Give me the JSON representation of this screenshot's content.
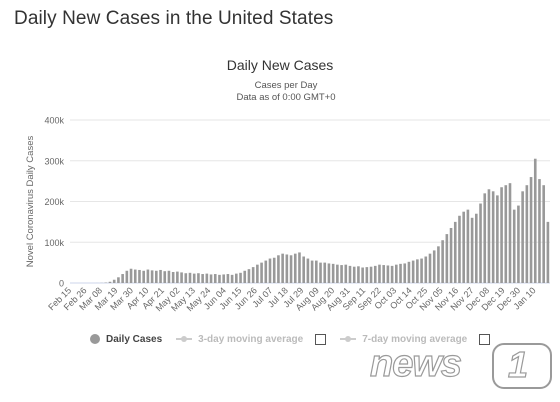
{
  "page": {
    "title": "Daily New Cases in the United States"
  },
  "chart_data": {
    "type": "bar",
    "title": "Daily New Cases",
    "subtitle_lines": [
      "Cases per Day",
      "Data as of 0:00 GMT+0"
    ],
    "ylabel": "Novel Coronavirus Daily Cases",
    "xlabel": "",
    "ylim": [
      0,
      400000
    ],
    "y_ticks": [
      {
        "value": 0,
        "label": "0"
      },
      {
        "value": 100000,
        "label": "100k"
      },
      {
        "value": 200000,
        "label": "200k"
      },
      {
        "value": 300000,
        "label": "300k"
      },
      {
        "value": 400000,
        "label": "400k"
      }
    ],
    "x_tick_labels": [
      "Feb 15",
      "Feb 26",
      "Mar 08",
      "Mar 19",
      "Mar 30",
      "Apr 10",
      "Apr 21",
      "May 02",
      "May 13",
      "May 24",
      "Jun 04",
      "Jun 15",
      "Jun 26",
      "Jul 07",
      "Jul 18",
      "Jul 29",
      "Aug 09",
      "Aug 20",
      "Aug 31",
      "Sep 11",
      "Sep 22",
      "Oct 03",
      "Oct 14",
      "Oct 25",
      "Nov 05",
      "Nov 16",
      "Nov 27",
      "Dec 08",
      "Dec 19",
      "Dec 30",
      "Jan 10"
    ],
    "grid": true,
    "legend_position": "bottom",
    "series": [
      {
        "name": "Daily Cases",
        "color": "#999999",
        "x": [
          "Feb 15",
          "Feb 18",
          "Feb 21",
          "Feb 24",
          "Feb 27",
          "Mar 01",
          "Mar 04",
          "Mar 07",
          "Mar 10",
          "Mar 13",
          "Mar 16",
          "Mar 19",
          "Mar 22",
          "Mar 25",
          "Mar 28",
          "Mar 31",
          "Apr 03",
          "Apr 06",
          "Apr 09",
          "Apr 12",
          "Apr 15",
          "Apr 18",
          "Apr 21",
          "Apr 24",
          "Apr 27",
          "Apr 30",
          "May 03",
          "May 06",
          "May 09",
          "May 12",
          "May 15",
          "May 18",
          "May 21",
          "May 24",
          "May 27",
          "May 30",
          "Jun 02",
          "Jun 05",
          "Jun 08",
          "Jun 11",
          "Jun 14",
          "Jun 17",
          "Jun 20",
          "Jun 23",
          "Jun 26",
          "Jun 29",
          "Jul 02",
          "Jul 05",
          "Jul 08",
          "Jul 11",
          "Jul 14",
          "Jul 17",
          "Jul 20",
          "Jul 23",
          "Jul 26",
          "Jul 29",
          "Aug 01",
          "Aug 04",
          "Aug 07",
          "Aug 10",
          "Aug 13",
          "Aug 16",
          "Aug 19",
          "Aug 22",
          "Aug 25",
          "Aug 28",
          "Aug 31",
          "Sep 03",
          "Sep 06",
          "Sep 09",
          "Sep 12",
          "Sep 15",
          "Sep 18",
          "Sep 21",
          "Sep 24",
          "Sep 27",
          "Sep 30",
          "Oct 03",
          "Oct 06",
          "Oct 09",
          "Oct 12",
          "Oct 15",
          "Oct 18",
          "Oct 21",
          "Oct 24",
          "Oct 27",
          "Oct 30",
          "Nov 02",
          "Nov 05",
          "Nov 08",
          "Nov 11",
          "Nov 14",
          "Nov 17",
          "Nov 20",
          "Nov 23",
          "Nov 26",
          "Nov 29",
          "Dec 02",
          "Dec 05",
          "Dec 08",
          "Dec 11",
          "Dec 14",
          "Dec 17",
          "Dec 20",
          "Dec 23",
          "Dec 26",
          "Dec 29",
          "Jan 01",
          "Jan 04",
          "Jan 07",
          "Jan 08",
          "Jan 10",
          "Jan 13",
          "Jan 15"
        ],
        "values": [
          0,
          0,
          0,
          0,
          0,
          0,
          100,
          300,
          1000,
          3000,
          8000,
          14000,
          22000,
          30000,
          35000,
          33000,
          32000,
          30000,
          33000,
          31000,
          30000,
          32000,
          29000,
          30000,
          27000,
          28000,
          26000,
          24000,
          25000,
          23000,
          24000,
          22000,
          23000,
          21000,
          22000,
          20000,
          21000,
          22000,
          20000,
          23000,
          25000,
          30000,
          34000,
          39000,
          45000,
          50000,
          55000,
          60000,
          62000,
          68000,
          72000,
          70000,
          68000,
          72000,
          75000,
          65000,
          60000,
          55000,
          55000,
          50000,
          50000,
          48000,
          47000,
          45000,
          44000,
          45000,
          42000,
          40000,
          41000,
          38000,
          39000,
          40000,
          42000,
          45000,
          44000,
          43000,
          42000,
          45000,
          47000,
          48000,
          52000,
          55000,
          58000,
          60000,
          65000,
          72000,
          80000,
          90000,
          105000,
          120000,
          135000,
          150000,
          165000,
          175000,
          180000,
          160000,
          170000,
          195000,
          220000,
          230000,
          225000,
          215000,
          235000,
          240000,
          245000,
          180000,
          190000,
          225000,
          240000,
          260000,
          305000,
          255000,
          240000,
          150000
        ]
      },
      {
        "name": "3-day moving average",
        "visible": false
      },
      {
        "name": "7-day moving average",
        "visible": false
      }
    ]
  },
  "legend": {
    "items": [
      {
        "label": "Daily Cases",
        "active": true,
        "icon": "circle-icon"
      },
      {
        "label": "3-day moving average",
        "active": false,
        "icon": "line-marker-icon"
      },
      {
        "label": "7-day moving average",
        "active": false,
        "icon": "line-marker-icon"
      }
    ]
  },
  "watermark": {
    "text": "news",
    "mark": "1"
  }
}
